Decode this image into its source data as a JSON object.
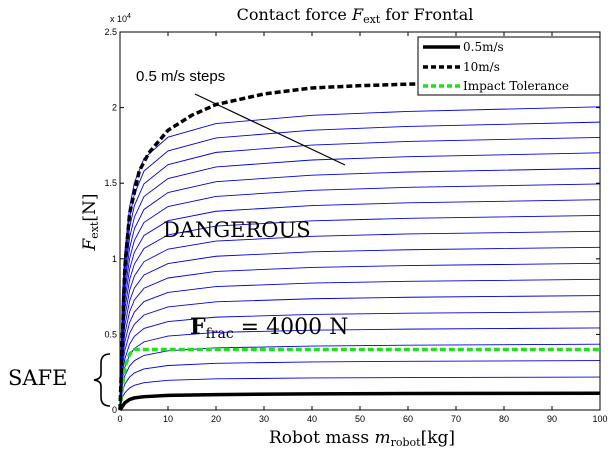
{
  "chart_data": {
    "type": "line",
    "title_prefix": "Contact force ",
    "title_var": "F",
    "title_sub": "ext",
    "title_suffix": " for Frontal",
    "xlabel_prefix": "Robot mass ",
    "xlabel_var": "m",
    "xlabel_sub": "robot",
    "xlabel_suffix": "[kg]",
    "ylabel_var": "F",
    "ylabel_sub": "ext",
    "ylabel_suffix": "[N]",
    "y_multiplier_base": "x 10",
    "y_multiplier_exp": "4",
    "xlim": [
      0,
      100
    ],
    "ylim": [
      0,
      25000
    ],
    "x_ticks": [
      0,
      10,
      20,
      30,
      40,
      50,
      60,
      70,
      80,
      90,
      100
    ],
    "x_tick_labels": [
      "0",
      "10",
      "20",
      "30",
      "40",
      "50",
      "60",
      "70",
      "80",
      "90",
      "100"
    ],
    "y_ticks": [
      0,
      5000,
      10000,
      15000,
      20000,
      25000
    ],
    "y_tick_labels": [
      "0",
      "0.5",
      "1",
      "1.5",
      "2",
      "2.5"
    ],
    "grid": false,
    "legend_position": "top-right",
    "legend": [
      {
        "label": "0.5m/s",
        "color": "#000000",
        "style": "solid"
      },
      {
        "label": "10m/s",
        "color": "#000000",
        "style": "dashed"
      },
      {
        "label": "Impact Tolerance",
        "color": "#22dd22",
        "style": "dashed"
      }
    ],
    "series": [
      {
        "name": "0.5m/s",
        "color": "#000000",
        "style": "solid",
        "x": [
          0,
          1,
          2,
          3,
          5,
          10,
          20,
          40,
          60,
          80,
          100
        ],
        "y": [
          0,
          470,
          700,
          800,
          880,
          970,
          1020,
          1070,
          1090,
          1100,
          1110
        ]
      },
      {
        "name": "10m/s",
        "color": "#000000",
        "style": "dashed",
        "x": [
          0,
          1,
          2,
          4,
          6,
          10,
          15,
          20,
          30,
          40,
          50,
          60,
          80,
          100
        ],
        "y": [
          0,
          9400,
          13000,
          15800,
          17000,
          18500,
          19500,
          20200,
          20900,
          21300,
          21450,
          21550,
          21700,
          21900
        ]
      },
      {
        "name": "Impact Tolerance",
        "color": "#22dd22",
        "style": "dashed",
        "x": [
          0,
          0.6,
          1.2,
          2,
          3,
          4,
          100
        ],
        "y": [
          0,
          1800,
          3000,
          3700,
          4000,
          4000,
          4000
        ]
      }
    ],
    "intermediate_curves": {
      "color": "#0000dd",
      "speeds_mps": [
        1.0,
        1.5,
        2.0,
        2.5,
        3.0,
        3.5,
        4.0,
        4.5,
        5.0,
        5.5,
        6.0,
        6.5,
        7.0,
        7.5,
        8.0,
        8.5,
        9.0,
        9.5
      ],
      "final_values_at_100kg": [
        2180,
        3270,
        4350,
        5430,
        6500,
        7570,
        8640,
        9700,
        10760,
        11820,
        12870,
        13910,
        14950,
        15980,
        17010,
        18030,
        19040,
        20050
      ],
      "x": [
        0,
        0.5,
        1,
        2,
        3,
        5,
        10,
        20,
        40,
        60,
        100
      ],
      "y_fraction_of_final": [
        0,
        0.38,
        0.52,
        0.67,
        0.75,
        0.83,
        0.9,
        0.945,
        0.972,
        0.985,
        1.0
      ]
    },
    "annotations": {
      "steps": "0.5 m/s steps",
      "dangerous": "DANGEROUS",
      "frac_symbol": "F",
      "frac_sub": "frac",
      "frac_value": " = 4000 N",
      "safe": "SAFE"
    }
  }
}
